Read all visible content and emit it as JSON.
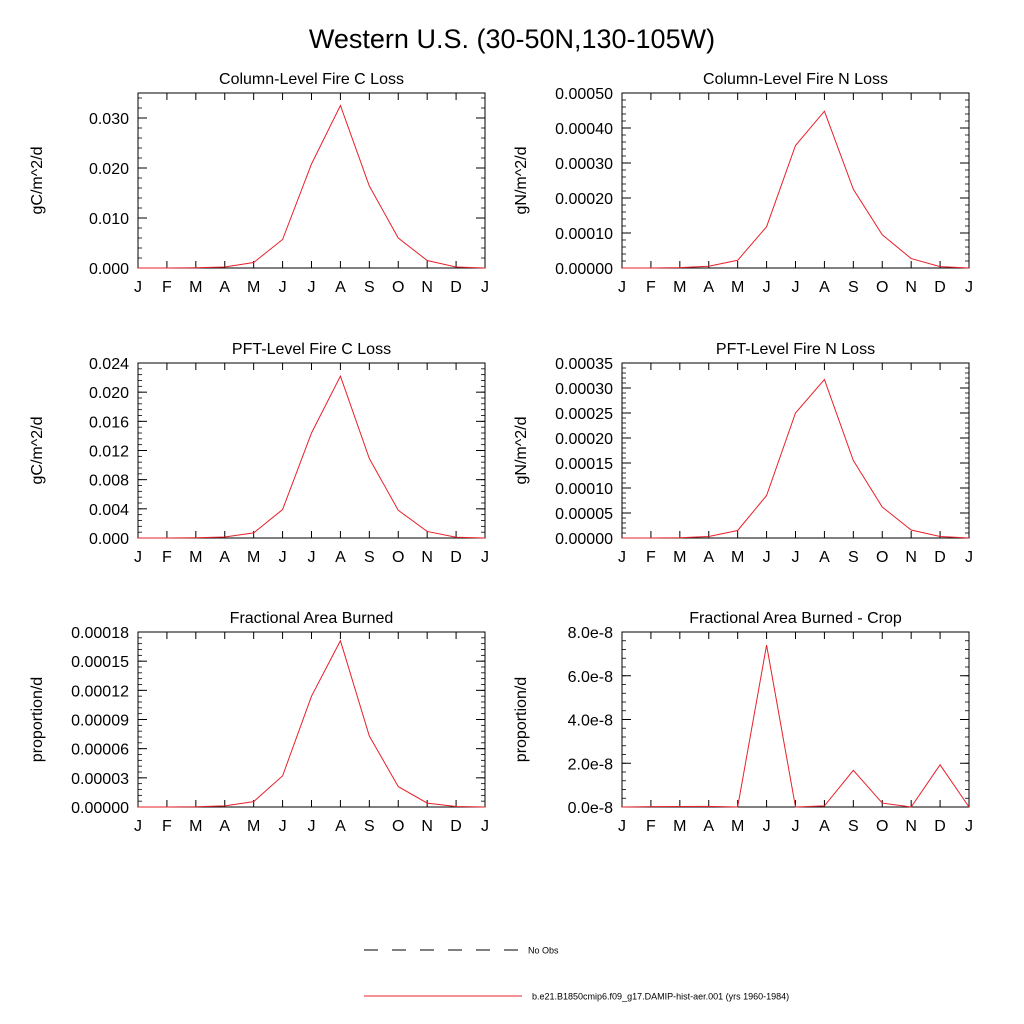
{
  "figure": {
    "title": "Western U.S. (30-50N,130-105W)"
  },
  "colors": {
    "model_line": "#e8202a",
    "obs_line": "#000000",
    "axes": "#000000"
  },
  "legend": {
    "placement": "bottom-center",
    "entries": [
      {
        "label": "No Obs",
        "style": "dashed",
        "color": "#000000"
      },
      {
        "label": "b.e21.B1850cmip6.f09_g17.DAMIP-hist-aer.001 (yrs 1960-1984)",
        "style": "solid",
        "color": "#e8202a"
      }
    ]
  },
  "chart_data": [
    {
      "type": "line",
      "title": "Column-Level Fire C Loss",
      "ylabel": "gC/m^2/d",
      "xlabel": "",
      "categories": [
        "J",
        "F",
        "M",
        "A",
        "M",
        "J",
        "J",
        "A",
        "S",
        "O",
        "N",
        "D",
        "J"
      ],
      "ylim": [
        0,
        0.035
      ],
      "yticks": [
        0,
        0.01,
        0.02,
        0.03
      ],
      "ytick_labels": [
        "0.000",
        "0.010",
        "0.020",
        "0.030"
      ],
      "grid": false,
      "series": [
        {
          "values": [
            0.0,
            0.0,
            5e-05,
            0.0002,
            0.0011,
            0.0057,
            0.0208,
            0.0325,
            0.0164,
            0.006,
            0.0015,
            0.0002,
            0.0
          ]
        }
      ]
    },
    {
      "type": "line",
      "title": "Column-Level Fire N Loss",
      "ylabel": "gN/m^2/d",
      "xlabel": "",
      "categories": [
        "J",
        "F",
        "M",
        "A",
        "M",
        "J",
        "J",
        "A",
        "S",
        "O",
        "N",
        "D",
        "J"
      ],
      "ylim": [
        0,
        0.0005
      ],
      "yticks": [
        0,
        0.0001,
        0.0002,
        0.0003,
        0.0004,
        0.0005
      ],
      "ytick_labels": [
        "0.00000",
        "0.00010",
        "0.00020",
        "0.00030",
        "0.00040",
        "0.00050"
      ],
      "grid": false,
      "series": [
        {
          "values": [
            0.0,
            0.0,
            1e-06,
            5e-06,
            2.2e-05,
            0.000118,
            0.00035,
            0.000448,
            0.000225,
            9.5e-05,
            2.7e-05,
            4e-06,
            0.0
          ]
        }
      ]
    },
    {
      "type": "line",
      "title": "PFT-Level Fire C Loss",
      "ylabel": "gC/m^2/d",
      "xlabel": "",
      "categories": [
        "J",
        "F",
        "M",
        "A",
        "M",
        "J",
        "J",
        "A",
        "S",
        "O",
        "N",
        "D",
        "J"
      ],
      "ylim": [
        0,
        0.024
      ],
      "yticks": [
        0,
        0.004,
        0.008,
        0.012,
        0.016,
        0.02,
        0.024
      ],
      "ytick_labels": [
        "0.000",
        "0.004",
        "0.008",
        "0.012",
        "0.016",
        "0.020",
        "0.024"
      ],
      "grid": false,
      "series": [
        {
          "values": [
            0.0,
            0.0,
            3e-05,
            0.00013,
            0.0007,
            0.0039,
            0.0144,
            0.0222,
            0.0109,
            0.0038,
            0.0009,
            0.0001,
            0.0
          ]
        }
      ]
    },
    {
      "type": "line",
      "title": "PFT-Level Fire N Loss",
      "ylabel": "gN/m^2/d",
      "xlabel": "",
      "categories": [
        "J",
        "F",
        "M",
        "A",
        "M",
        "J",
        "J",
        "A",
        "S",
        "O",
        "N",
        "D",
        "J"
      ],
      "ylim": [
        0,
        0.00035
      ],
      "yticks": [
        0,
        5e-05,
        0.0001,
        0.00015,
        0.0002,
        0.00025,
        0.0003,
        0.00035
      ],
      "ytick_labels": [
        "0.00000",
        "0.00005",
        "0.00010",
        "0.00015",
        "0.00020",
        "0.00025",
        "0.00030",
        "0.00035"
      ],
      "grid": false,
      "series": [
        {
          "values": [
            0.0,
            0.0,
            5e-07,
            3e-06,
            1.5e-05,
            8.5e-05,
            0.00025,
            0.000317,
            0.000155,
            6.2e-05,
            1.6e-05,
            3e-06,
            0.0
          ]
        }
      ]
    },
    {
      "type": "line",
      "title": "Fractional Area Burned",
      "ylabel": "proportion/d",
      "xlabel": "",
      "categories": [
        "J",
        "F",
        "M",
        "A",
        "M",
        "J",
        "J",
        "A",
        "S",
        "O",
        "N",
        "D",
        "J"
      ],
      "ylim": [
        0,
        0.00018
      ],
      "yticks": [
        0,
        3e-05,
        6e-05,
        9e-05,
        0.00012,
        0.00015,
        0.00018
      ],
      "ytick_labels": [
        "0.00000",
        "0.00003",
        "0.00006",
        "0.00009",
        "0.00012",
        "0.00015",
        "0.00018"
      ],
      "grid": false,
      "series": [
        {
          "values": [
            0.0,
            0.0,
            2e-07,
            1.2e-06,
            5.5e-06,
            3.2e-05,
            0.000114,
            0.000171,
            7.3e-05,
            2.1e-05,
            4e-06,
            5e-07,
            0.0
          ]
        }
      ]
    },
    {
      "type": "line",
      "title": "Fractional Area Burned - Crop",
      "ylabel": "proportion/d",
      "xlabel": "",
      "categories": [
        "J",
        "F",
        "M",
        "A",
        "M",
        "J",
        "J",
        "A",
        "S",
        "O",
        "N",
        "D",
        "J"
      ],
      "ylim": [
        0,
        8e-08
      ],
      "yticks": [
        0,
        2e-08,
        4e-08,
        6e-08,
        8e-08
      ],
      "ytick_labels": [
        "0.0e-8",
        "2.0e-8",
        "4.0e-8",
        "6.0e-8",
        "8.0e-8"
      ],
      "grid": false,
      "series": [
        {
          "values": [
            0.0,
            1.5e-10,
            2e-10,
            3e-10,
            0.0,
            7.4e-08,
            0.0,
            5e-10,
            1.68e-08,
            1.8e-09,
            0.0,
            1.93e-08,
            0.0
          ]
        }
      ]
    }
  ]
}
